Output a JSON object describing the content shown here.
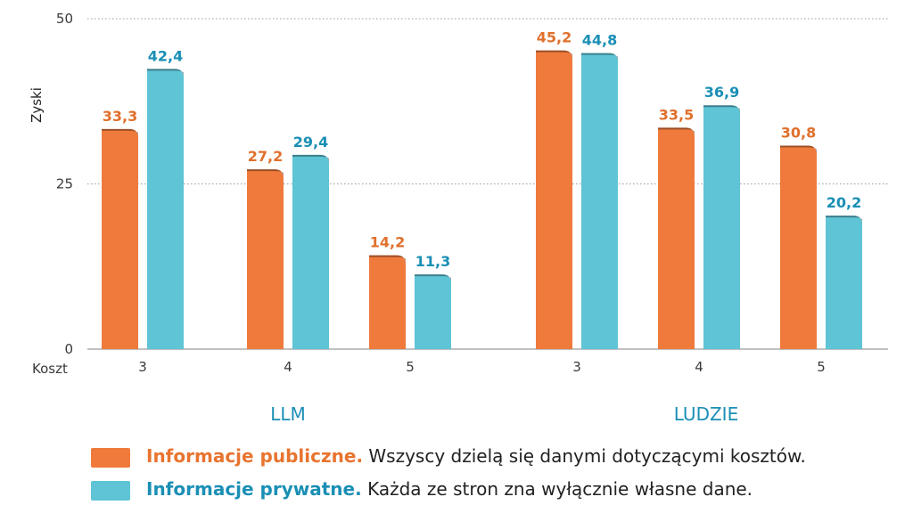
{
  "chart_data": {
    "type": "bar",
    "ylabel": "Zyski",
    "xlabel": "Koszt",
    "ylim": [
      0,
      50
    ],
    "yticks": [
      0,
      25,
      50
    ],
    "grid": true,
    "groups": [
      {
        "label": "LLM",
        "categories": [
          "3",
          "4",
          "5"
        ]
      },
      {
        "label": "LUDZIE",
        "categories": [
          "3",
          "4",
          "5"
        ]
      }
    ],
    "series": [
      {
        "name": "Informacje publiczne",
        "color": "#ef7a3c",
        "values": [
          33.3,
          27.2,
          14.2,
          45.2,
          33.5,
          30.8
        ],
        "labels": [
          "33,3",
          "27,2",
          "14,2",
          "45,2",
          "33,5",
          "30,8"
        ]
      },
      {
        "name": "Informacje prywatne",
        "color": "#5ec4d6",
        "values": [
          42.4,
          29.4,
          11.3,
          44.8,
          36.9,
          20.2
        ],
        "labels": [
          "42,4",
          "29,4",
          "11,3",
          "44,8",
          "36,9",
          "20,2"
        ]
      }
    ]
  },
  "legend": [
    {
      "name": "Informacje publiczne.",
      "desc": "Wszyscy dzielą się danymi dotyczącymi kosztów.",
      "color": "#ef7a3c",
      "label_color": "#e8742f"
    },
    {
      "name": "Informacje prywatne.",
      "desc": "Każda ze stron zna wyłącznie własne dane.",
      "color": "#5ec4d6",
      "label_color": "#1a8fb5"
    }
  ]
}
